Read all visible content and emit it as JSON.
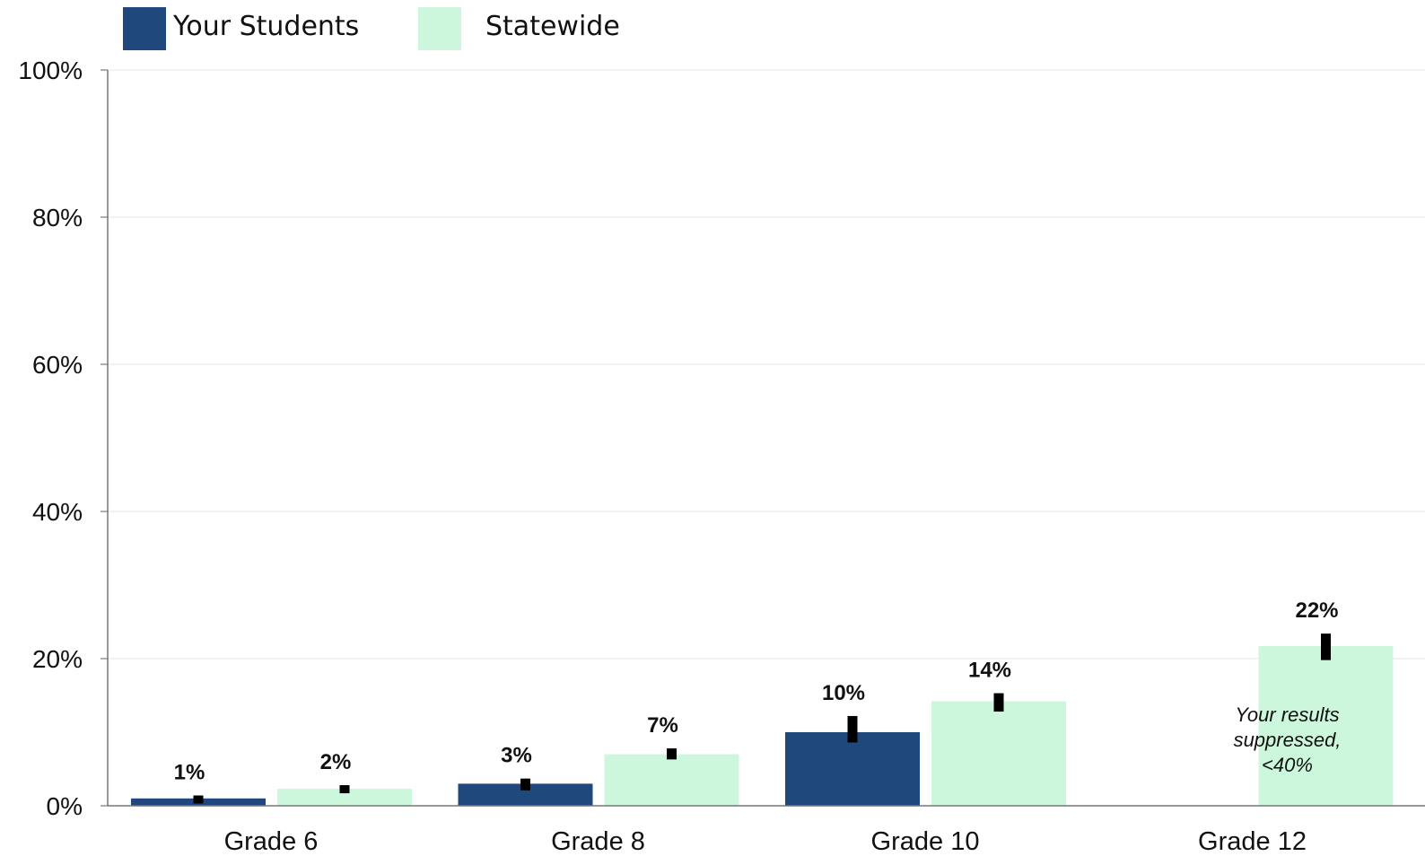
{
  "chart_data": {
    "type": "bar",
    "categories": [
      "Grade 6",
      "Grade 8",
      "Grade 10",
      "Grade 12"
    ],
    "series": [
      {
        "name": "Your Students",
        "color": "#1f497d",
        "values": [
          1,
          3,
          10,
          null
        ],
        "labels": [
          "1%",
          "3%",
          "10%",
          ""
        ],
        "error_bars": [
          [
            0.4,
            1.4
          ],
          [
            2.1,
            3.7
          ],
          [
            8.6,
            12.2
          ],
          null
        ]
      },
      {
        "name": "Statewide",
        "color": "#ccf7dc",
        "values": [
          2.3,
          7,
          14.2,
          21.7
        ],
        "labels": [
          "2%",
          "7%",
          "14%",
          "22%"
        ],
        "error_bars": [
          [
            1.8,
            2.8
          ],
          [
            6.3,
            7.8
          ],
          [
            12.8,
            15.3
          ],
          [
            19.8,
            23.4
          ]
        ]
      }
    ],
    "suppressed_note": [
      "Your results",
      "suppressed,",
      "<40%"
    ],
    "yticks": [
      "0%",
      "20%",
      "40%",
      "60%",
      "80%",
      "100%"
    ],
    "ylim": [
      0,
      100
    ],
    "grid": true,
    "legend_position": "top-left"
  }
}
